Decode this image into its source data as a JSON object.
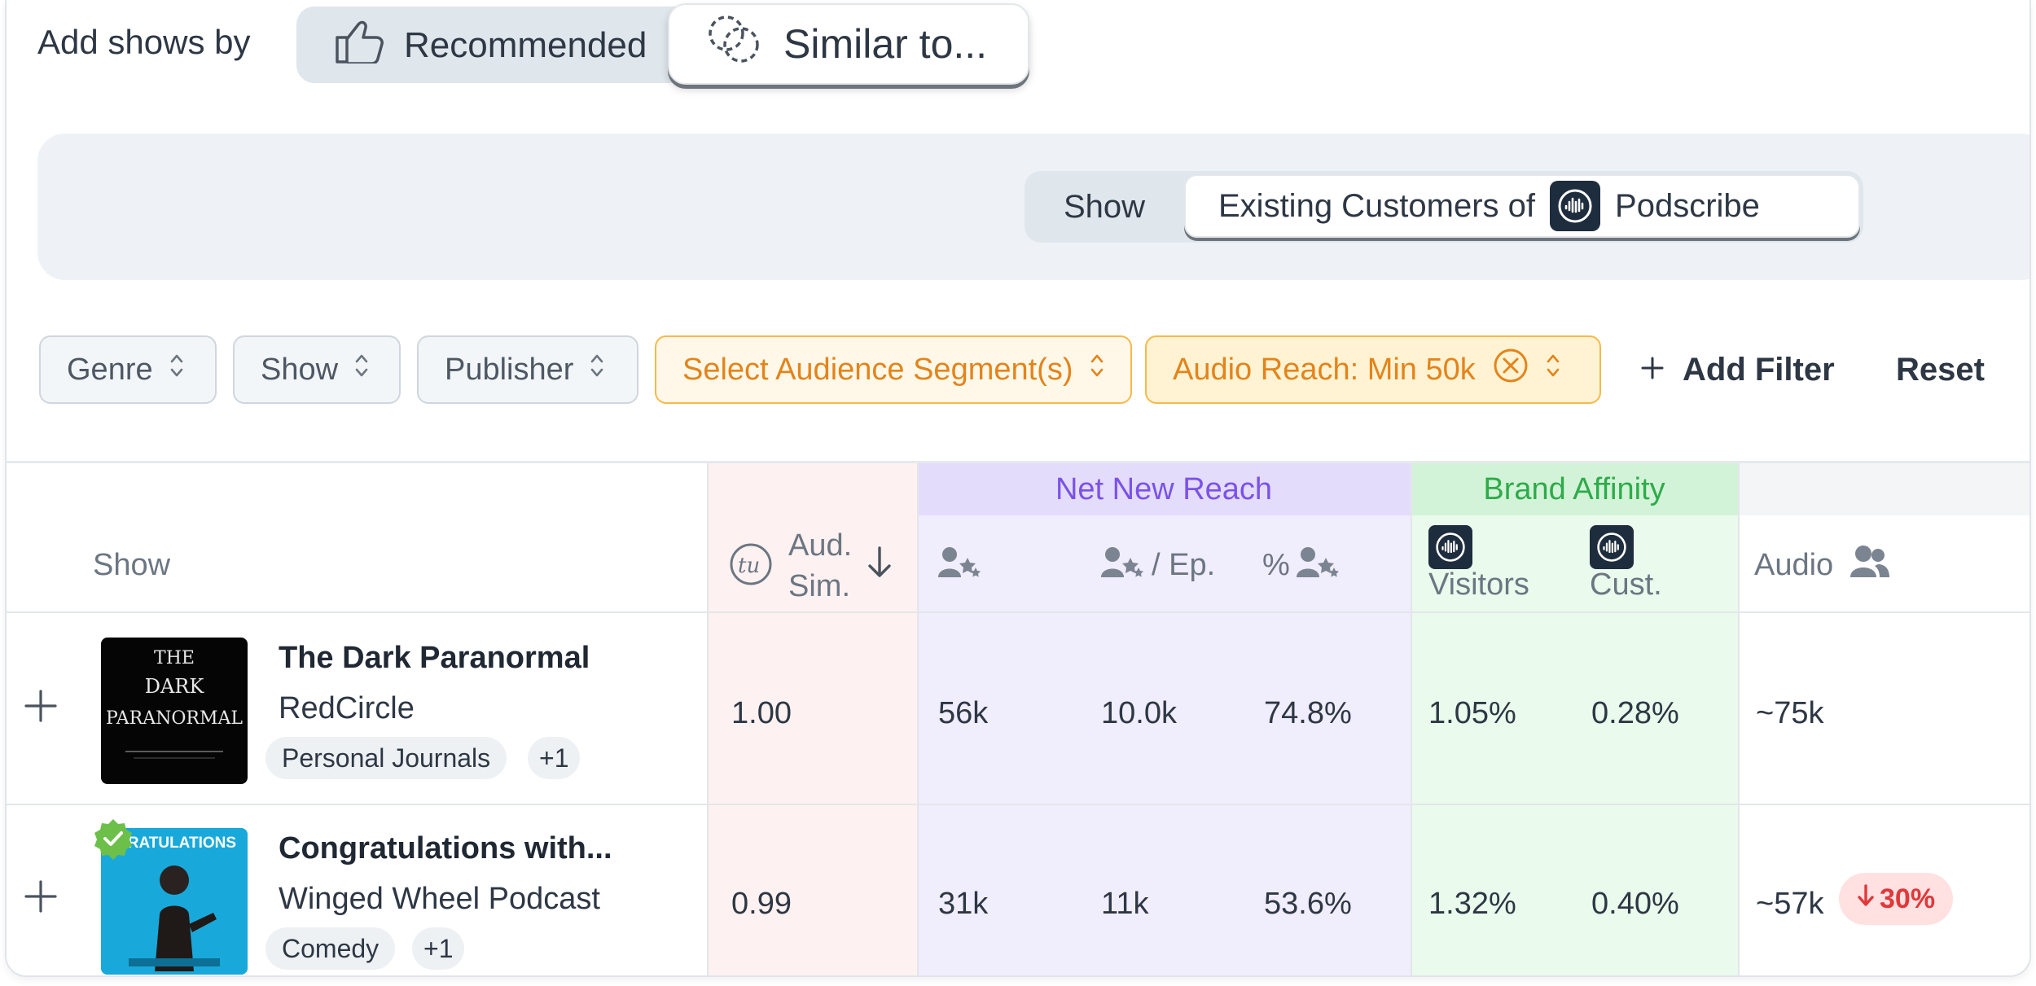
{
  "header": {
    "add_label": "Add shows by",
    "recommended_label": "Recommended",
    "similar_label": "Similar to..."
  },
  "banner": {
    "show_label": "Show",
    "customers_prefix": "Existing Customers of",
    "brand_name": "Podscribe"
  },
  "filters": {
    "genre": "Genre",
    "show": "Show",
    "publisher": "Publisher",
    "audience": "Select Audience Segment(s)",
    "audio_reach": "Audio Reach: Min 50k",
    "add_filter": "Add Filter",
    "reset": "Reset"
  },
  "table": {
    "groups": {
      "net_new_reach": "Net New Reach",
      "brand_affinity": "Brand Affinity"
    },
    "columns": {
      "show": "Show",
      "aud_sim_1": "Aud.",
      "aud_sim_2": "Sim.",
      "per_ep": "/ Ep.",
      "pct": "%",
      "visitors": "Visitors",
      "cust": "Cust.",
      "audio": "Audio"
    },
    "colors": {
      "aud_sim_bg": "#fdf2f1",
      "net_new_bg": "#f0edfd",
      "net_new_hdr_bg": "#e3dcfb",
      "net_new_hdr_text": "#7b52e8",
      "brand_bg": "#eafaec",
      "brand_hdr_bg": "#d3f3d8",
      "brand_hdr_text": "#2eab4a"
    },
    "rows": [
      {
        "title": "The Dark Paranormal",
        "publisher": "RedCircle",
        "tag": "Personal Journals",
        "more": "+1",
        "aud_sim": "1.00",
        "reach": "56k",
        "reach_per_ep": "10.0k",
        "reach_pct": "74.8%",
        "visitors": "1.05%",
        "cust": "0.28%",
        "audio": "~75k",
        "art_text": [
          "THE",
          "DARK",
          "PARANORMAL"
        ]
      },
      {
        "title": "Congratulations with...",
        "publisher": "Winged Wheel Podcast",
        "tag": "Comedy",
        "more": "+1",
        "aud_sim": "0.99",
        "reach": "31k",
        "reach_per_ep": "11k",
        "reach_pct": "53.6%",
        "visitors": "1.32%",
        "cust": "0.40%",
        "audio": "~57k",
        "audio_change": "30%",
        "art_text": [
          "GRATULATIONS"
        ]
      }
    ]
  }
}
